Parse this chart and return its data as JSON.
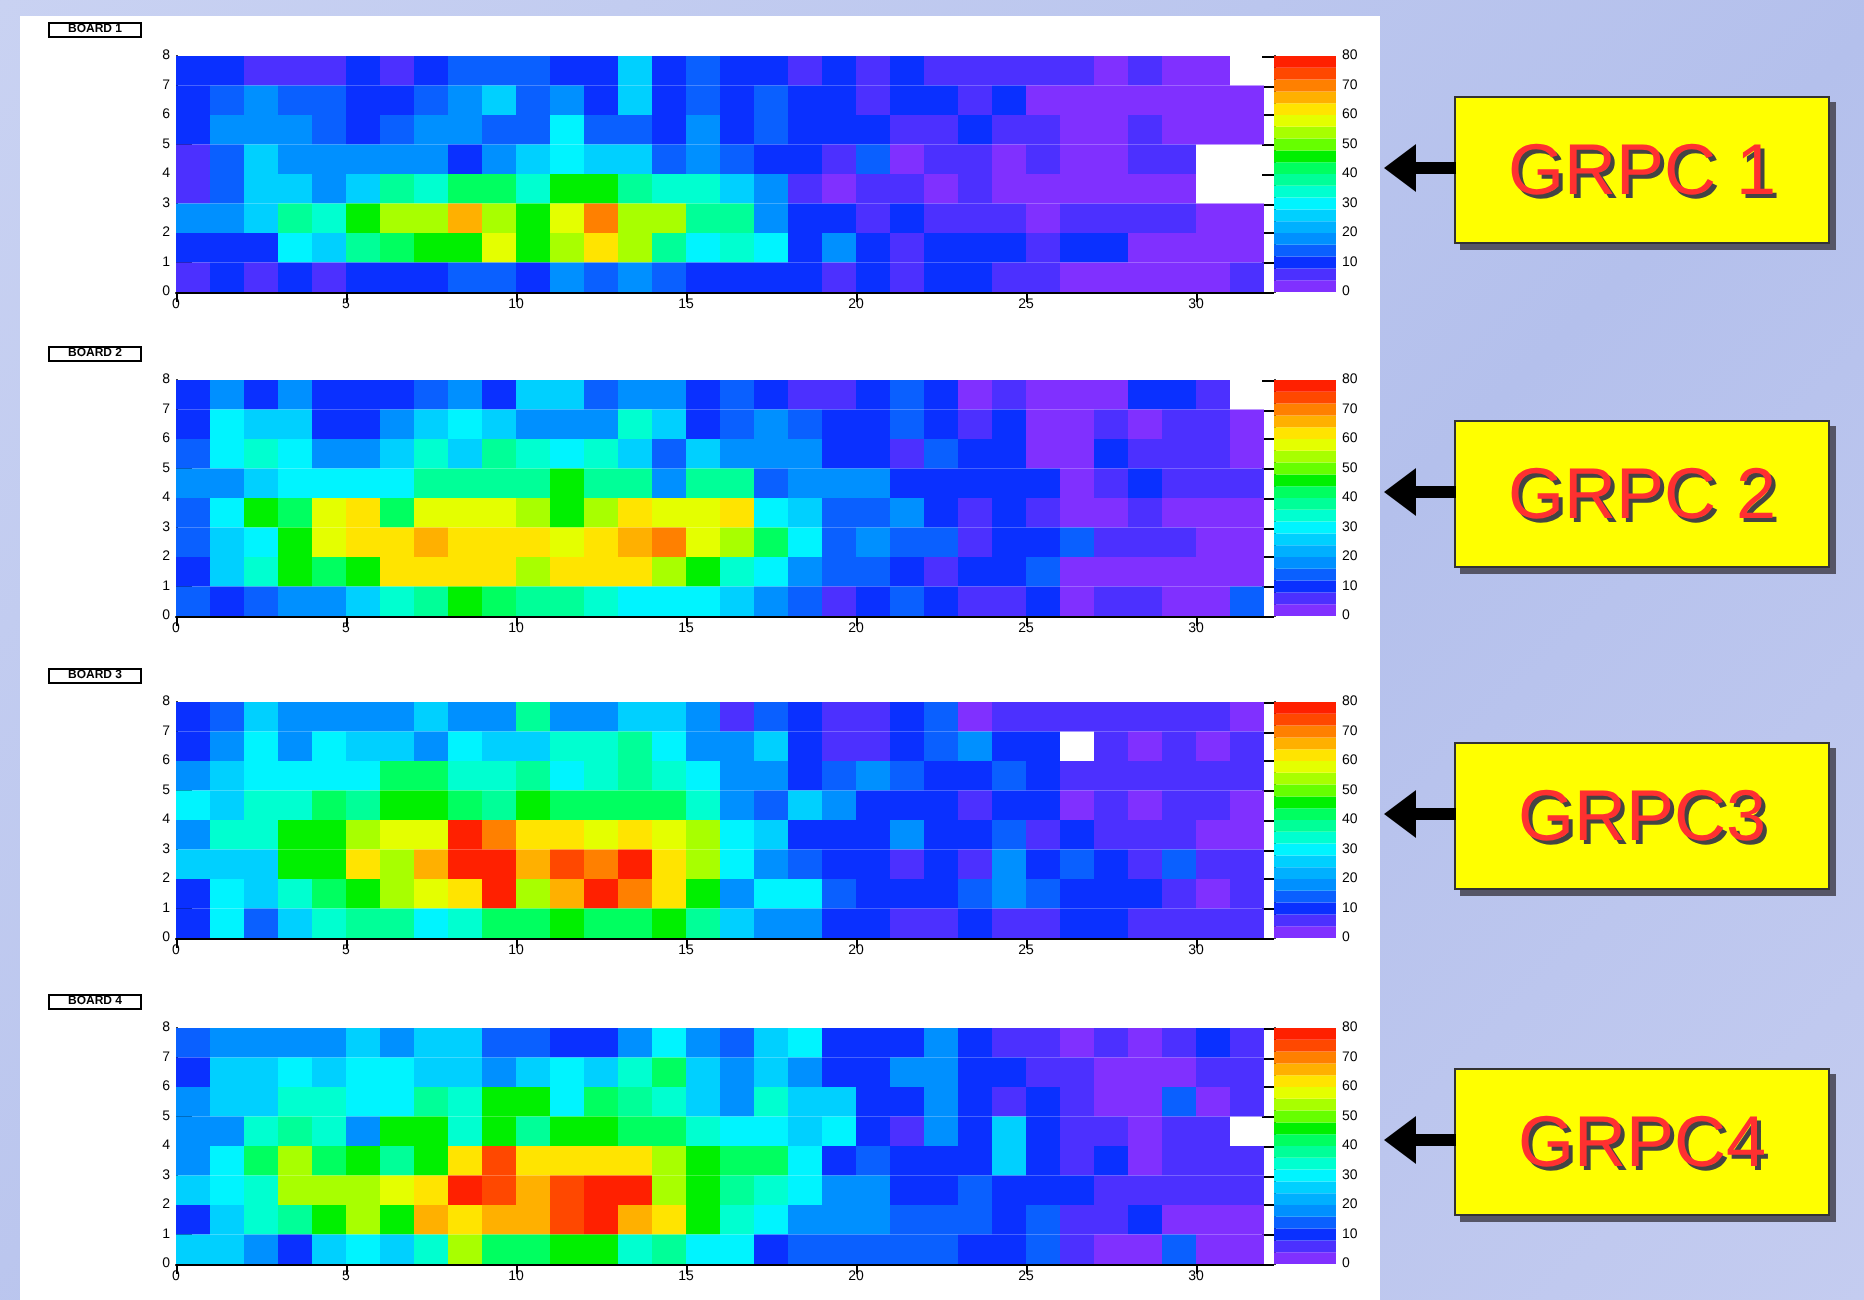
{
  "chart_data": [
    {
      "type": "heatmap",
      "title": "BOARD 1",
      "xlim": [
        0,
        32
      ],
      "xticks": [
        0,
        5,
        10,
        15,
        20,
        25,
        30
      ],
      "ylim": [
        0,
        8
      ],
      "yticks": [
        0,
        1,
        2,
        3,
        4,
        5,
        6,
        7,
        8
      ],
      "clim": [
        0,
        80
      ],
      "cticks": [
        0,
        10,
        20,
        30,
        40,
        50,
        60,
        70,
        80
      ],
      "annotations": [
        "GRPC 1"
      ],
      "cells": [
        [
          8,
          11,
          7,
          7,
          7,
          11,
          7,
          11,
          15,
          15,
          15,
          11,
          11,
          26,
          11,
          15,
          11,
          11,
          7,
          11,
          7,
          11,
          7,
          7,
          7,
          7,
          7,
          3,
          7,
          3,
          3,
          null
        ],
        [
          8,
          15,
          19,
          15,
          15,
          11,
          11,
          15,
          19,
          26,
          15,
          19,
          11,
          26,
          11,
          15,
          11,
          15,
          11,
          11,
          7,
          11,
          11,
          7,
          11,
          3,
          3,
          3,
          3,
          3,
          3,
          3
        ],
        [
          11,
          19,
          19,
          19,
          15,
          11,
          15,
          19,
          19,
          15,
          15,
          30,
          15,
          15,
          11,
          19,
          11,
          15,
          11,
          11,
          11,
          7,
          7,
          11,
          7,
          7,
          3,
          3,
          7,
          3,
          3,
          3
        ],
        [
          7,
          15,
          26,
          19,
          19,
          19,
          19,
          19,
          11,
          19,
          26,
          30,
          24,
          24,
          15,
          19,
          15,
          11,
          11,
          7,
          15,
          3,
          7,
          7,
          3,
          7,
          3,
          3,
          7,
          7,
          null,
          null
        ],
        [
          7,
          15,
          26,
          26,
          19,
          26,
          38,
          32,
          40,
          40,
          32,
          46,
          46,
          38,
          32,
          32,
          26,
          19,
          7,
          3,
          7,
          7,
          3,
          7,
          3,
          3,
          3,
          3,
          3,
          3,
          null,
          null
        ],
        [
          19,
          19,
          26,
          38,
          32,
          46,
          52,
          52,
          66,
          52,
          46,
          56,
          70,
          52,
          52,
          38,
          38,
          19,
          11,
          11,
          7,
          11,
          7,
          7,
          7,
          3,
          7,
          7,
          7,
          7,
          3,
          3
        ],
        [
          8,
          11,
          11,
          30,
          26,
          38,
          40,
          46,
          46,
          56,
          46,
          52,
          62,
          52,
          38,
          30,
          34,
          30,
          11,
          19,
          11,
          7,
          11,
          11,
          11,
          7,
          11,
          11,
          3,
          3,
          3,
          3
        ],
        [
          5,
          11,
          7,
          11,
          7,
          11,
          11,
          11,
          15,
          15,
          11,
          19,
          15,
          19,
          15,
          11,
          11,
          11,
          11,
          7,
          11,
          7,
          11,
          11,
          7,
          7,
          3,
          3,
          3,
          3,
          3,
          7
        ]
      ]
    },
    {
      "type": "heatmap",
      "title": "BOARD 2",
      "xlim": [
        0,
        32
      ],
      "xticks": [
        0,
        5,
        10,
        15,
        20,
        25,
        30
      ],
      "ylim": [
        0,
        8
      ],
      "yticks": [
        0,
        1,
        2,
        3,
        4,
        5,
        6,
        7,
        8
      ],
      "clim": [
        0,
        80
      ],
      "cticks": [
        0,
        10,
        20,
        30,
        40,
        50,
        60,
        70,
        80
      ],
      "annotations": [
        "GRPC 2"
      ],
      "cells": [
        [
          11,
          19,
          11,
          19,
          11,
          11,
          11,
          15,
          19,
          11,
          24,
          24,
          15,
          19,
          19,
          11,
          15,
          11,
          7,
          7,
          11,
          15,
          11,
          3,
          7,
          3,
          3,
          3,
          11,
          11,
          7,
          null
        ],
        [
          11,
          30,
          24,
          24,
          11,
          11,
          19,
          26,
          30,
          24,
          19,
          19,
          19,
          34,
          24,
          11,
          15,
          19,
          15,
          11,
          11,
          15,
          11,
          7,
          11,
          3,
          3,
          7,
          3,
          7,
          7,
          3
        ],
        [
          15,
          30,
          34,
          30,
          19,
          19,
          26,
          34,
          26,
          38,
          34,
          30,
          34,
          26,
          15,
          26,
          19,
          19,
          19,
          11,
          11,
          7,
          15,
          11,
          11,
          3,
          3,
          11,
          7,
          7,
          7,
          3
        ],
        [
          19,
          19,
          24,
          30,
          30,
          30,
          30,
          38,
          38,
          38,
          38,
          46,
          38,
          38,
          19,
          38,
          38,
          15,
          19,
          19,
          19,
          11,
          11,
          11,
          11,
          11,
          3,
          7,
          11,
          7,
          7,
          7
        ],
        [
          15,
          30,
          46,
          40,
          56,
          60,
          40,
          56,
          56,
          56,
          52,
          46,
          52,
          62,
          56,
          56,
          60,
          30,
          26,
          15,
          15,
          19,
          11,
          7,
          11,
          7,
          3,
          3,
          7,
          3,
          3,
          3
        ],
        [
          15,
          26,
          30,
          46,
          56,
          62,
          60,
          66,
          60,
          60,
          60,
          56,
          60,
          66,
          70,
          56,
          52,
          40,
          30,
          15,
          19,
          15,
          15,
          7,
          11,
          11,
          15,
          7,
          7,
          7,
          3,
          3
        ],
        [
          11,
          26,
          34,
          46,
          40,
          46,
          62,
          62,
          62,
          62,
          52,
          62,
          62,
          62,
          52,
          46,
          34,
          30,
          19,
          15,
          15,
          11,
          7,
          11,
          11,
          15,
          3,
          3,
          3,
          3,
          3,
          3
        ],
        [
          15,
          11,
          15,
          19,
          19,
          26,
          34,
          38,
          46,
          40,
          38,
          38,
          34,
          30,
          30,
          30,
          26,
          19,
          15,
          7,
          11,
          15,
          11,
          7,
          7,
          11,
          3,
          7,
          7,
          3,
          3,
          15
        ]
      ]
    },
    {
      "type": "heatmap",
      "title": "BOARD 3",
      "xlim": [
        0,
        32
      ],
      "xticks": [
        0,
        5,
        10,
        15,
        20,
        25,
        30
      ],
      "ylim": [
        0,
        8
      ],
      "yticks": [
        0,
        1,
        2,
        3,
        4,
        5,
        6,
        7,
        8
      ],
      "clim": [
        0,
        80
      ],
      "cticks": [
        0,
        10,
        20,
        30,
        40,
        50,
        60,
        70,
        80
      ],
      "annotations": [
        "GRPC3"
      ],
      "cells": [
        [
          11,
          15,
          24,
          19,
          19,
          19,
          19,
          24,
          19,
          19,
          38,
          19,
          19,
          24,
          24,
          19,
          7,
          15,
          11,
          7,
          7,
          11,
          15,
          3,
          7,
          7,
          7,
          7,
          7,
          7,
          7,
          3
        ],
        [
          11,
          19,
          30,
          19,
          30,
          26,
          26,
          19,
          30,
          26,
          26,
          34,
          34,
          38,
          30,
          19,
          19,
          26,
          11,
          7,
          7,
          11,
          15,
          19,
          11,
          11,
          null,
          7,
          3,
          7,
          3,
          7
        ],
        [
          19,
          26,
          30,
          30,
          30,
          30,
          40,
          40,
          34,
          34,
          38,
          30,
          34,
          38,
          34,
          30,
          19,
          19,
          11,
          15,
          19,
          15,
          11,
          11,
          15,
          11,
          7,
          7,
          7,
          7,
          7,
          7
        ],
        [
          30,
          26,
          34,
          34,
          40,
          38,
          46,
          46,
          40,
          38,
          46,
          40,
          40,
          40,
          40,
          34,
          19,
          15,
          26,
          19,
          11,
          11,
          11,
          7,
          11,
          11,
          3,
          7,
          3,
          7,
          7,
          3
        ],
        [
          19,
          34,
          34,
          46,
          46,
          52,
          56,
          56,
          78,
          70,
          60,
          60,
          56,
          60,
          56,
          52,
          30,
          26,
          11,
          11,
          11,
          19,
          11,
          11,
          15,
          7,
          11,
          7,
          7,
          7,
          3,
          3
        ],
        [
          26,
          26,
          26,
          46,
          46,
          60,
          52,
          66,
          78,
          78,
          66,
          74,
          70,
          78,
          62,
          52,
          30,
          19,
          15,
          11,
          11,
          7,
          11,
          7,
          19,
          11,
          15,
          11,
          7,
          15,
          7,
          7
        ],
        [
          11,
          30,
          26,
          34,
          40,
          46,
          52,
          56,
          62,
          78,
          52,
          66,
          76,
          70,
          62,
          46,
          19,
          30,
          30,
          15,
          11,
          11,
          11,
          15,
          19,
          15,
          11,
          11,
          11,
          7,
          3,
          7
        ],
        [
          11,
          30,
          15,
          26,
          34,
          38,
          38,
          30,
          34,
          40,
          40,
          46,
          40,
          40,
          46,
          38,
          26,
          19,
          19,
          11,
          11,
          7,
          7,
          11,
          7,
          7,
          11,
          11,
          7,
          7,
          7,
          7
        ]
      ]
    },
    {
      "type": "heatmap",
      "title": "BOARD 4",
      "xlim": [
        0,
        32
      ],
      "xticks": [
        0,
        5,
        10,
        15,
        20,
        25,
        30
      ],
      "ylim": [
        0,
        8
      ],
      "yticks": [
        0,
        1,
        2,
        3,
        4,
        5,
        6,
        7,
        8
      ],
      "clim": [
        0,
        80
      ],
      "cticks": [
        0,
        10,
        20,
        30,
        40,
        50,
        60,
        70,
        80
      ],
      "annotations": [
        "GRPC4"
      ],
      "cells": [
        [
          15,
          19,
          19,
          19,
          19,
          26,
          19,
          26,
          26,
          15,
          15,
          11,
          11,
          19,
          30,
          19,
          15,
          26,
          30,
          11,
          11,
          11,
          19,
          11,
          7,
          7,
          3,
          7,
          3,
          7,
          11,
          7
        ],
        [
          11,
          26,
          26,
          30,
          26,
          30,
          30,
          26,
          26,
          19,
          26,
          30,
          26,
          34,
          40,
          26,
          19,
          26,
          19,
          11,
          11,
          19,
          19,
          11,
          11,
          7,
          7,
          3,
          3,
          3,
          7,
          7
        ],
        [
          19,
          26,
          26,
          34,
          34,
          30,
          30,
          38,
          34,
          46,
          46,
          30,
          40,
          38,
          34,
          26,
          19,
          34,
          26,
          26,
          11,
          11,
          19,
          11,
          7,
          11,
          7,
          3,
          3,
          15,
          3,
          7
        ],
        [
          19,
          19,
          34,
          38,
          34,
          19,
          46,
          46,
          34,
          46,
          38,
          46,
          46,
          40,
          40,
          34,
          30,
          30,
          26,
          30,
          11,
          7,
          19,
          11,
          26,
          11,
          7,
          7,
          3,
          7,
          7,
          null
        ],
        [
          19,
          30,
          40,
          52,
          40,
          46,
          38,
          46,
          62,
          74,
          62,
          62,
          60,
          60,
          52,
          46,
          40,
          40,
          30,
          11,
          15,
          11,
          11,
          11,
          26,
          11,
          7,
          11,
          3,
          7,
          7,
          7
        ],
        [
          26,
          30,
          34,
          52,
          52,
          52,
          56,
          60,
          78,
          74,
          66,
          74,
          78,
          78,
          52,
          46,
          38,
          34,
          30,
          19,
          19,
          11,
          11,
          15,
          11,
          11,
          11,
          7,
          7,
          7,
          7,
          7
        ],
        [
          11,
          26,
          34,
          38,
          46,
          52,
          46,
          66,
          62,
          66,
          66,
          74,
          78,
          66,
          60,
          46,
          34,
          30,
          19,
          19,
          19,
          15,
          15,
          15,
          11,
          15,
          7,
          7,
          11,
          3,
          3,
          3
        ],
        [
          26,
          26,
          19,
          11,
          26,
          30,
          26,
          34,
          52,
          40,
          40,
          46,
          46,
          34,
          38,
          30,
          30,
          11,
          15,
          15,
          15,
          15,
          15,
          11,
          11,
          15,
          7,
          3,
          3,
          15,
          3,
          3
        ]
      ]
    }
  ]
}
